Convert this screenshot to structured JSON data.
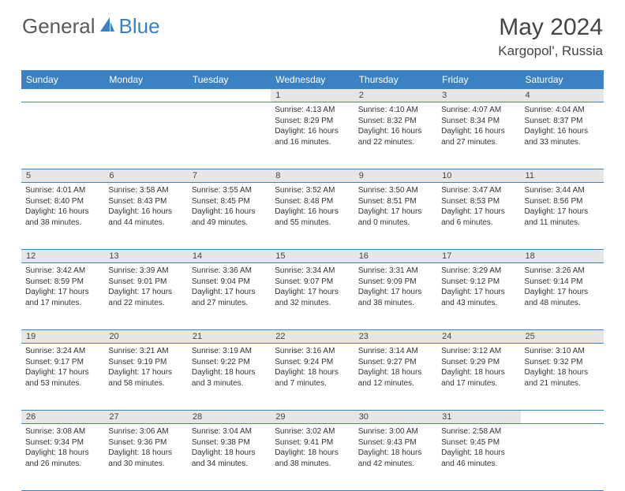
{
  "logo": {
    "text1": "General",
    "text2": "Blue"
  },
  "title": "May 2024",
  "location": "Kargopol', Russia",
  "headers": [
    "Sunday",
    "Monday",
    "Tuesday",
    "Wednesday",
    "Thursday",
    "Friday",
    "Saturday"
  ],
  "colors": {
    "accent": "#3a82c4",
    "daynum_bg": "#e6e6e6",
    "text": "#333333",
    "title_text": "#444444"
  },
  "weeks": [
    [
      null,
      null,
      null,
      {
        "n": "1",
        "sr": "4:13 AM",
        "ss": "8:29 PM",
        "dl": "16 hours and 16 minutes."
      },
      {
        "n": "2",
        "sr": "4:10 AM",
        "ss": "8:32 PM",
        "dl": "16 hours and 22 minutes."
      },
      {
        "n": "3",
        "sr": "4:07 AM",
        "ss": "8:34 PM",
        "dl": "16 hours and 27 minutes."
      },
      {
        "n": "4",
        "sr": "4:04 AM",
        "ss": "8:37 PM",
        "dl": "16 hours and 33 minutes."
      }
    ],
    [
      {
        "n": "5",
        "sr": "4:01 AM",
        "ss": "8:40 PM",
        "dl": "16 hours and 38 minutes."
      },
      {
        "n": "6",
        "sr": "3:58 AM",
        "ss": "8:43 PM",
        "dl": "16 hours and 44 minutes."
      },
      {
        "n": "7",
        "sr": "3:55 AM",
        "ss": "8:45 PM",
        "dl": "16 hours and 49 minutes."
      },
      {
        "n": "8",
        "sr": "3:52 AM",
        "ss": "8:48 PM",
        "dl": "16 hours and 55 minutes."
      },
      {
        "n": "9",
        "sr": "3:50 AM",
        "ss": "8:51 PM",
        "dl": "17 hours and 0 minutes."
      },
      {
        "n": "10",
        "sr": "3:47 AM",
        "ss": "8:53 PM",
        "dl": "17 hours and 6 minutes."
      },
      {
        "n": "11",
        "sr": "3:44 AM",
        "ss": "8:56 PM",
        "dl": "17 hours and 11 minutes."
      }
    ],
    [
      {
        "n": "12",
        "sr": "3:42 AM",
        "ss": "8:59 PM",
        "dl": "17 hours and 17 minutes."
      },
      {
        "n": "13",
        "sr": "3:39 AM",
        "ss": "9:01 PM",
        "dl": "17 hours and 22 minutes."
      },
      {
        "n": "14",
        "sr": "3:36 AM",
        "ss": "9:04 PM",
        "dl": "17 hours and 27 minutes."
      },
      {
        "n": "15",
        "sr": "3:34 AM",
        "ss": "9:07 PM",
        "dl": "17 hours and 32 minutes."
      },
      {
        "n": "16",
        "sr": "3:31 AM",
        "ss": "9:09 PM",
        "dl": "17 hours and 38 minutes."
      },
      {
        "n": "17",
        "sr": "3:29 AM",
        "ss": "9:12 PM",
        "dl": "17 hours and 43 minutes."
      },
      {
        "n": "18",
        "sr": "3:26 AM",
        "ss": "9:14 PM",
        "dl": "17 hours and 48 minutes."
      }
    ],
    [
      {
        "n": "19",
        "sr": "3:24 AM",
        "ss": "9:17 PM",
        "dl": "17 hours and 53 minutes."
      },
      {
        "n": "20",
        "sr": "3:21 AM",
        "ss": "9:19 PM",
        "dl": "17 hours and 58 minutes."
      },
      {
        "n": "21",
        "sr": "3:19 AM",
        "ss": "9:22 PM",
        "dl": "18 hours and 3 minutes."
      },
      {
        "n": "22",
        "sr": "3:16 AM",
        "ss": "9:24 PM",
        "dl": "18 hours and 7 minutes."
      },
      {
        "n": "23",
        "sr": "3:14 AM",
        "ss": "9:27 PM",
        "dl": "18 hours and 12 minutes."
      },
      {
        "n": "24",
        "sr": "3:12 AM",
        "ss": "9:29 PM",
        "dl": "18 hours and 17 minutes."
      },
      {
        "n": "25",
        "sr": "3:10 AM",
        "ss": "9:32 PM",
        "dl": "18 hours and 21 minutes."
      }
    ],
    [
      {
        "n": "26",
        "sr": "3:08 AM",
        "ss": "9:34 PM",
        "dl": "18 hours and 26 minutes."
      },
      {
        "n": "27",
        "sr": "3:06 AM",
        "ss": "9:36 PM",
        "dl": "18 hours and 30 minutes."
      },
      {
        "n": "28",
        "sr": "3:04 AM",
        "ss": "9:38 PM",
        "dl": "18 hours and 34 minutes."
      },
      {
        "n": "29",
        "sr": "3:02 AM",
        "ss": "9:41 PM",
        "dl": "18 hours and 38 minutes."
      },
      {
        "n": "30",
        "sr": "3:00 AM",
        "ss": "9:43 PM",
        "dl": "18 hours and 42 minutes."
      },
      {
        "n": "31",
        "sr": "2:58 AM",
        "ss": "9:45 PM",
        "dl": "18 hours and 46 minutes."
      },
      null
    ]
  ],
  "labels": {
    "sunrise": "Sunrise: ",
    "sunset": "Sunset: ",
    "daylight": "Daylight: "
  }
}
